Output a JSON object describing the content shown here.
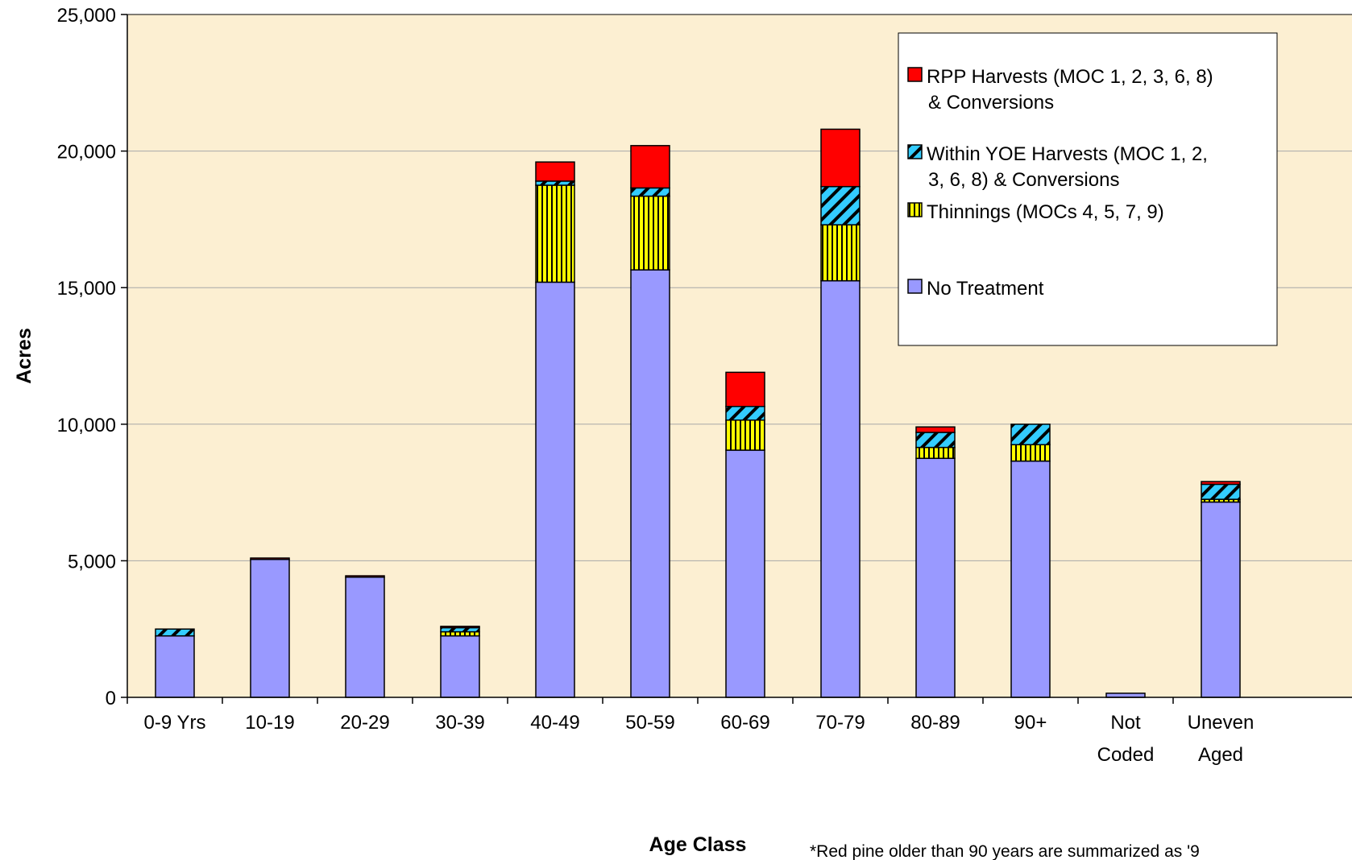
{
  "chart_data": {
    "type": "bar",
    "stacked": true,
    "xlabel": "Age Class",
    "ylabel": "Acres",
    "ylim": [
      0,
      25000
    ],
    "yticks": [
      0,
      5000,
      10000,
      15000,
      20000,
      25000
    ],
    "ytick_labels": [
      "0",
      "5,000",
      "10,000",
      "15,000",
      "20,000",
      "25,000"
    ],
    "grid": true,
    "legend_position": "top-right",
    "categories": [
      [
        "0-9 Yrs"
      ],
      [
        "10-19"
      ],
      [
        "20-29"
      ],
      [
        "30-39"
      ],
      [
        "40-49"
      ],
      [
        "50-59"
      ],
      [
        "60-69"
      ],
      [
        "70-79"
      ],
      [
        "80-89"
      ],
      [
        "90+"
      ],
      [
        "Not",
        "Coded"
      ],
      [
        "Uneven",
        "Aged"
      ]
    ],
    "series": [
      {
        "name": "No Treatment",
        "color": "#9999ff",
        "pattern": "solid",
        "values": [
          2250,
          5050,
          4400,
          2250,
          15200,
          15650,
          9050,
          15250,
          8750,
          8650,
          150,
          7150
        ]
      },
      {
        "name": "Thinnings (MOCs 4, 5, 7, 9)",
        "color": "#ffff00",
        "pattern": "vertical-stripes",
        "values": [
          0,
          0,
          0,
          150,
          3550,
          2700,
          1100,
          2050,
          400,
          600,
          0,
          100
        ]
      },
      {
        "name": "Within YOE Harvests (MOC 1, 2, 3, 6, 8) & Conversions",
        "color": "#33ccff",
        "pattern": "diagonal-stripes",
        "values": [
          250,
          0,
          0,
          150,
          150,
          300,
          500,
          1400,
          550,
          750,
          0,
          550
        ]
      },
      {
        "name": "RPP Harvests (MOC 1, 2, 3, 6, 8) & Conversions",
        "color": "#ff0000",
        "pattern": "solid",
        "values": [
          0,
          50,
          50,
          50,
          700,
          1550,
          1250,
          2100,
          200,
          0,
          0,
          100
        ]
      }
    ],
    "legend_entries": [
      {
        "lines": [
          "RPP Harvests (MOC 1, 2, 3, 6, 8)",
          "& Conversions"
        ],
        "series": 3
      },
      {
        "lines": [
          "Within YOE Harvests (MOC 1, 2,",
          "3, 6, 8) & Conversions"
        ],
        "series": 2
      },
      {
        "lines": [
          "Thinnings (MOCs 4, 5, 7, 9)"
        ],
        "series": 1
      },
      {
        "lines": [
          "No Treatment"
        ],
        "series": 0
      }
    ],
    "footnote": "*Red pine older than 90 years are summarized as '9"
  },
  "colors": {
    "plot_background": "#fcefd2",
    "gridline": "#a8a8a8",
    "bar_outline": "#000000"
  }
}
